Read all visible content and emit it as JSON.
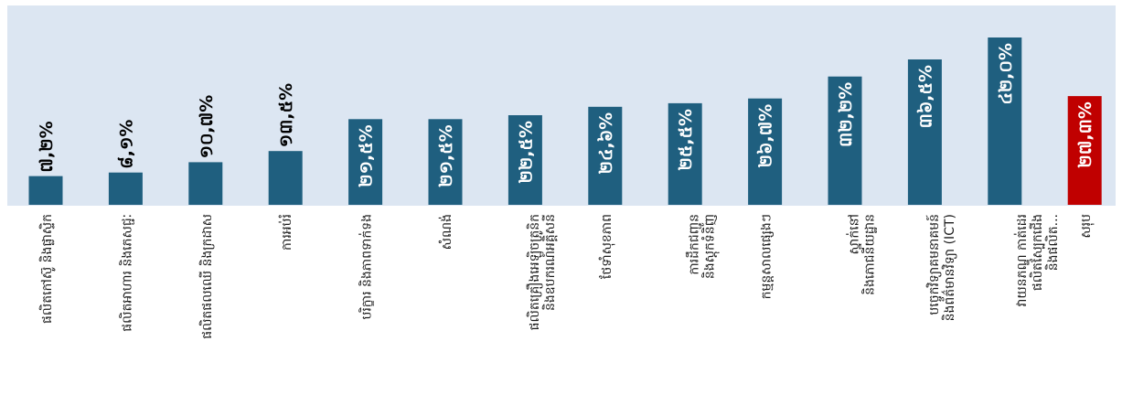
{
  "chart_data": {
    "type": "bar",
    "title": "",
    "xlabel": "",
    "ylabel": "",
    "ylim": [
      0,
      45
    ],
    "grid": false,
    "legend": "none",
    "colors": {
      "plot_background": "#dce6f2",
      "bar": "#1f5f7f",
      "highlight_bar": "#c00000",
      "label_inside": "#ffffff",
      "label_outside": "#000000"
    },
    "categories": [
      "ផលិតកៅស៊ូ និងផ្លាស្ទិក",
      "ផលិតអាហារ និងភេសជ្ជៈ",
      "ផលិតផលឈើ និងក្រដាស",
      "ការអប់រំ",
      "បរិក្ខារ និងភាពទាក់ទង",
      "សំណង់",
      "ផលិតគ្រឿងអេឡិចត្រូនិក និងឧបករណ៍អគ្គិសនី",
      "ថែទាំសុខភាព",
      "ការដឹកជញ្ជូន និងស្តុកទំនិញ",
      "កម្មន្តសាលផ្សេងៗ",
      "ស្នាក់នៅ និងភោជនីយដ្ឋាន",
      "បច្ចេកវិទ្យាគមនាគមន៍ និងព័ត៌មានវិទ្យា (ICT)",
      "វាយនភណ្ឌ កាត់ដេរ ផលិតស្បែកជើង និងផលិត...",
      "សរុប"
    ],
    "values": [
      7.2,
      8.1,
      10.7,
      13.5,
      21.5,
      21.5,
      22.5,
      24.6,
      25.5,
      26.7,
      32.2,
      36.5,
      42.0,
      27.3
    ],
    "data_labels": [
      "៧,២%",
      "៨,១%",
      "១០,៧%",
      "១៣,៥%",
      "២១,៥%",
      "២១,៥%",
      "២២,៥%",
      "២៤,៦%",
      "២៥,៥%",
      "២៦,៧%",
      "៣២,២%",
      "៣៦,៥%",
      "៤២,០%",
      "២៧,៣%"
    ],
    "highlight_index": 13
  }
}
